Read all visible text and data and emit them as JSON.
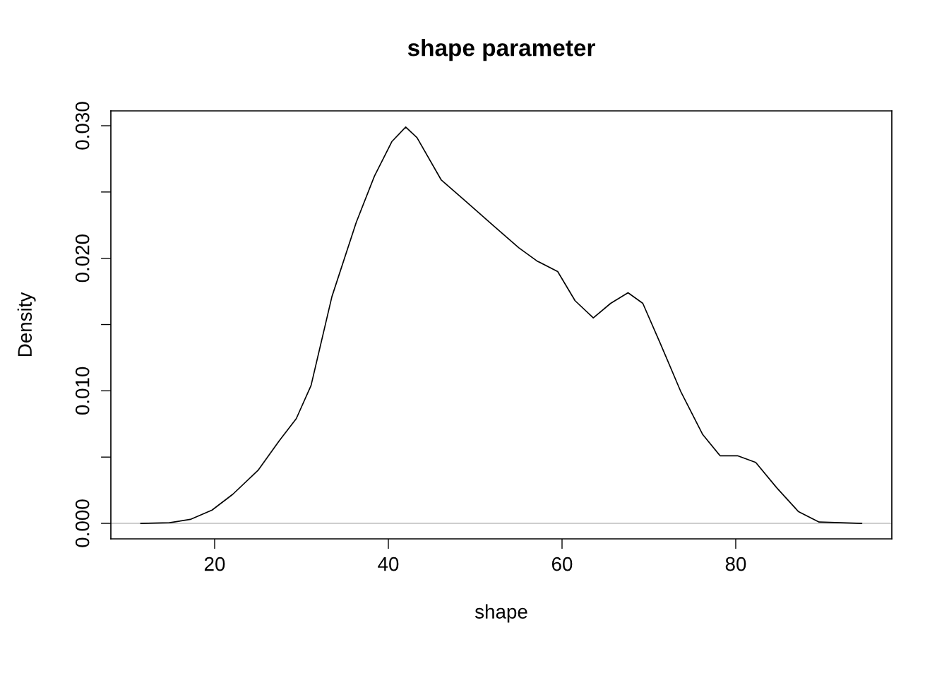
{
  "chart_data": {
    "type": "line",
    "title": "shape parameter",
    "xlabel": "shape",
    "ylabel": "Density",
    "x": [
      11.5,
      14.8,
      17.2,
      19.7,
      22.1,
      25.0,
      27.4,
      29.4,
      31.1,
      33.5,
      36.3,
      38.4,
      40.4,
      42.0,
      43.3,
      46.1,
      48.9,
      52.2,
      55.0,
      57.1,
      59.5,
      61.5,
      63.6,
      65.6,
      67.6,
      69.3,
      71.3,
      73.7,
      76.2,
      78.2,
      80.2,
      82.3,
      84.7,
      87.2,
      89.6,
      94.5
    ],
    "series": [
      {
        "color": "#000000",
        "values": [
          0,
          5e-05,
          0.0003,
          0.001,
          0.0022,
          0.004,
          0.0062,
          0.0079,
          0.0104,
          0.0171,
          0.0227,
          0.0262,
          0.0288,
          0.0299,
          0.0291,
          0.0259,
          0.0243,
          0.0224,
          0.0208,
          0.0198,
          0.019,
          0.0168,
          0.0155,
          0.0166,
          0.0174,
          0.0166,
          0.0136,
          0.0099,
          0.0067,
          0.0051,
          0.0051,
          0.0046,
          0.0027,
          0.0009,
          0.0001,
          0
        ]
      }
    ],
    "xlim": [
      8.05,
      97.97
    ],
    "ylim": [
      -0.00117,
      0.03112
    ],
    "xticks": [
      20,
      40,
      60,
      80
    ],
    "yticks": [
      {
        "value": 0,
        "label": "0.000"
      },
      {
        "value": 0.005,
        "label": null
      },
      {
        "value": 0.01,
        "label": "0.010"
      },
      {
        "value": 0.015,
        "label": null
      },
      {
        "value": 0.02,
        "label": "0.020"
      },
      {
        "value": 0.025,
        "label": null
      },
      {
        "value": 0.03,
        "label": "0.030"
      }
    ],
    "ref_lines": [
      {
        "axis": "y",
        "value": 0,
        "color": "#bebebe"
      }
    ],
    "grid": false,
    "legend": false,
    "marker": "none",
    "line_style": "solid"
  }
}
